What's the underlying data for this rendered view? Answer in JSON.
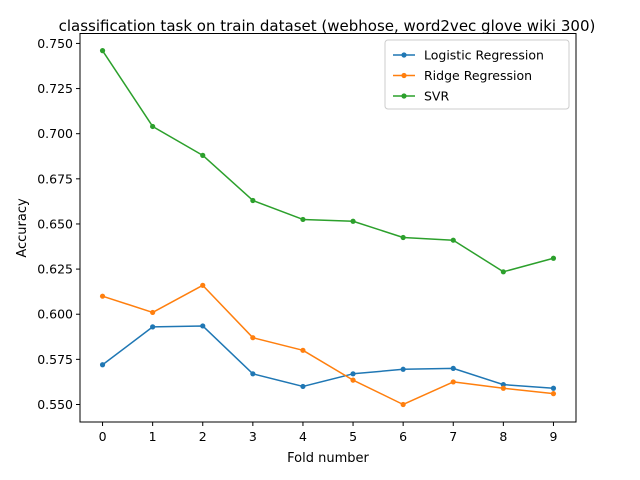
{
  "chart_data": {
    "type": "line",
    "title": "classification task on train dataset (webhose, word2vec glove wiki 300)",
    "xlabel": "Fold number",
    "ylabel": "Accuracy",
    "x": [
      0,
      1,
      2,
      3,
      4,
      5,
      6,
      7,
      8,
      9
    ],
    "xticks": [
      "0",
      "1",
      "2",
      "3",
      "4",
      "5",
      "6",
      "7",
      "8",
      "9"
    ],
    "xlim": [
      -0.45,
      9.45
    ],
    "ylim": [
      0.5403,
      0.7555
    ],
    "yticks": [
      "0.550",
      "0.575",
      "0.600",
      "0.625",
      "0.650",
      "0.675",
      "0.700",
      "0.725",
      "0.750"
    ],
    "grid": false,
    "legend_position": "top-right",
    "series": [
      {
        "name": "Logistic Regression",
        "color": "#1f77b4",
        "values": [
          0.572,
          0.593,
          0.5935,
          0.567,
          0.56,
          0.567,
          0.5695,
          0.57,
          0.561,
          0.559
        ]
      },
      {
        "name": "Ridge Regression",
        "color": "#ff7f0e",
        "values": [
          0.61,
          0.601,
          0.616,
          0.587,
          0.58,
          0.5635,
          0.55,
          0.5625,
          0.559,
          0.556
        ]
      },
      {
        "name": "SVR",
        "color": "#2ca02c",
        "values": [
          0.746,
          0.704,
          0.688,
          0.663,
          0.6525,
          0.6515,
          0.6425,
          0.641,
          0.6235,
          0.631
        ]
      }
    ]
  }
}
